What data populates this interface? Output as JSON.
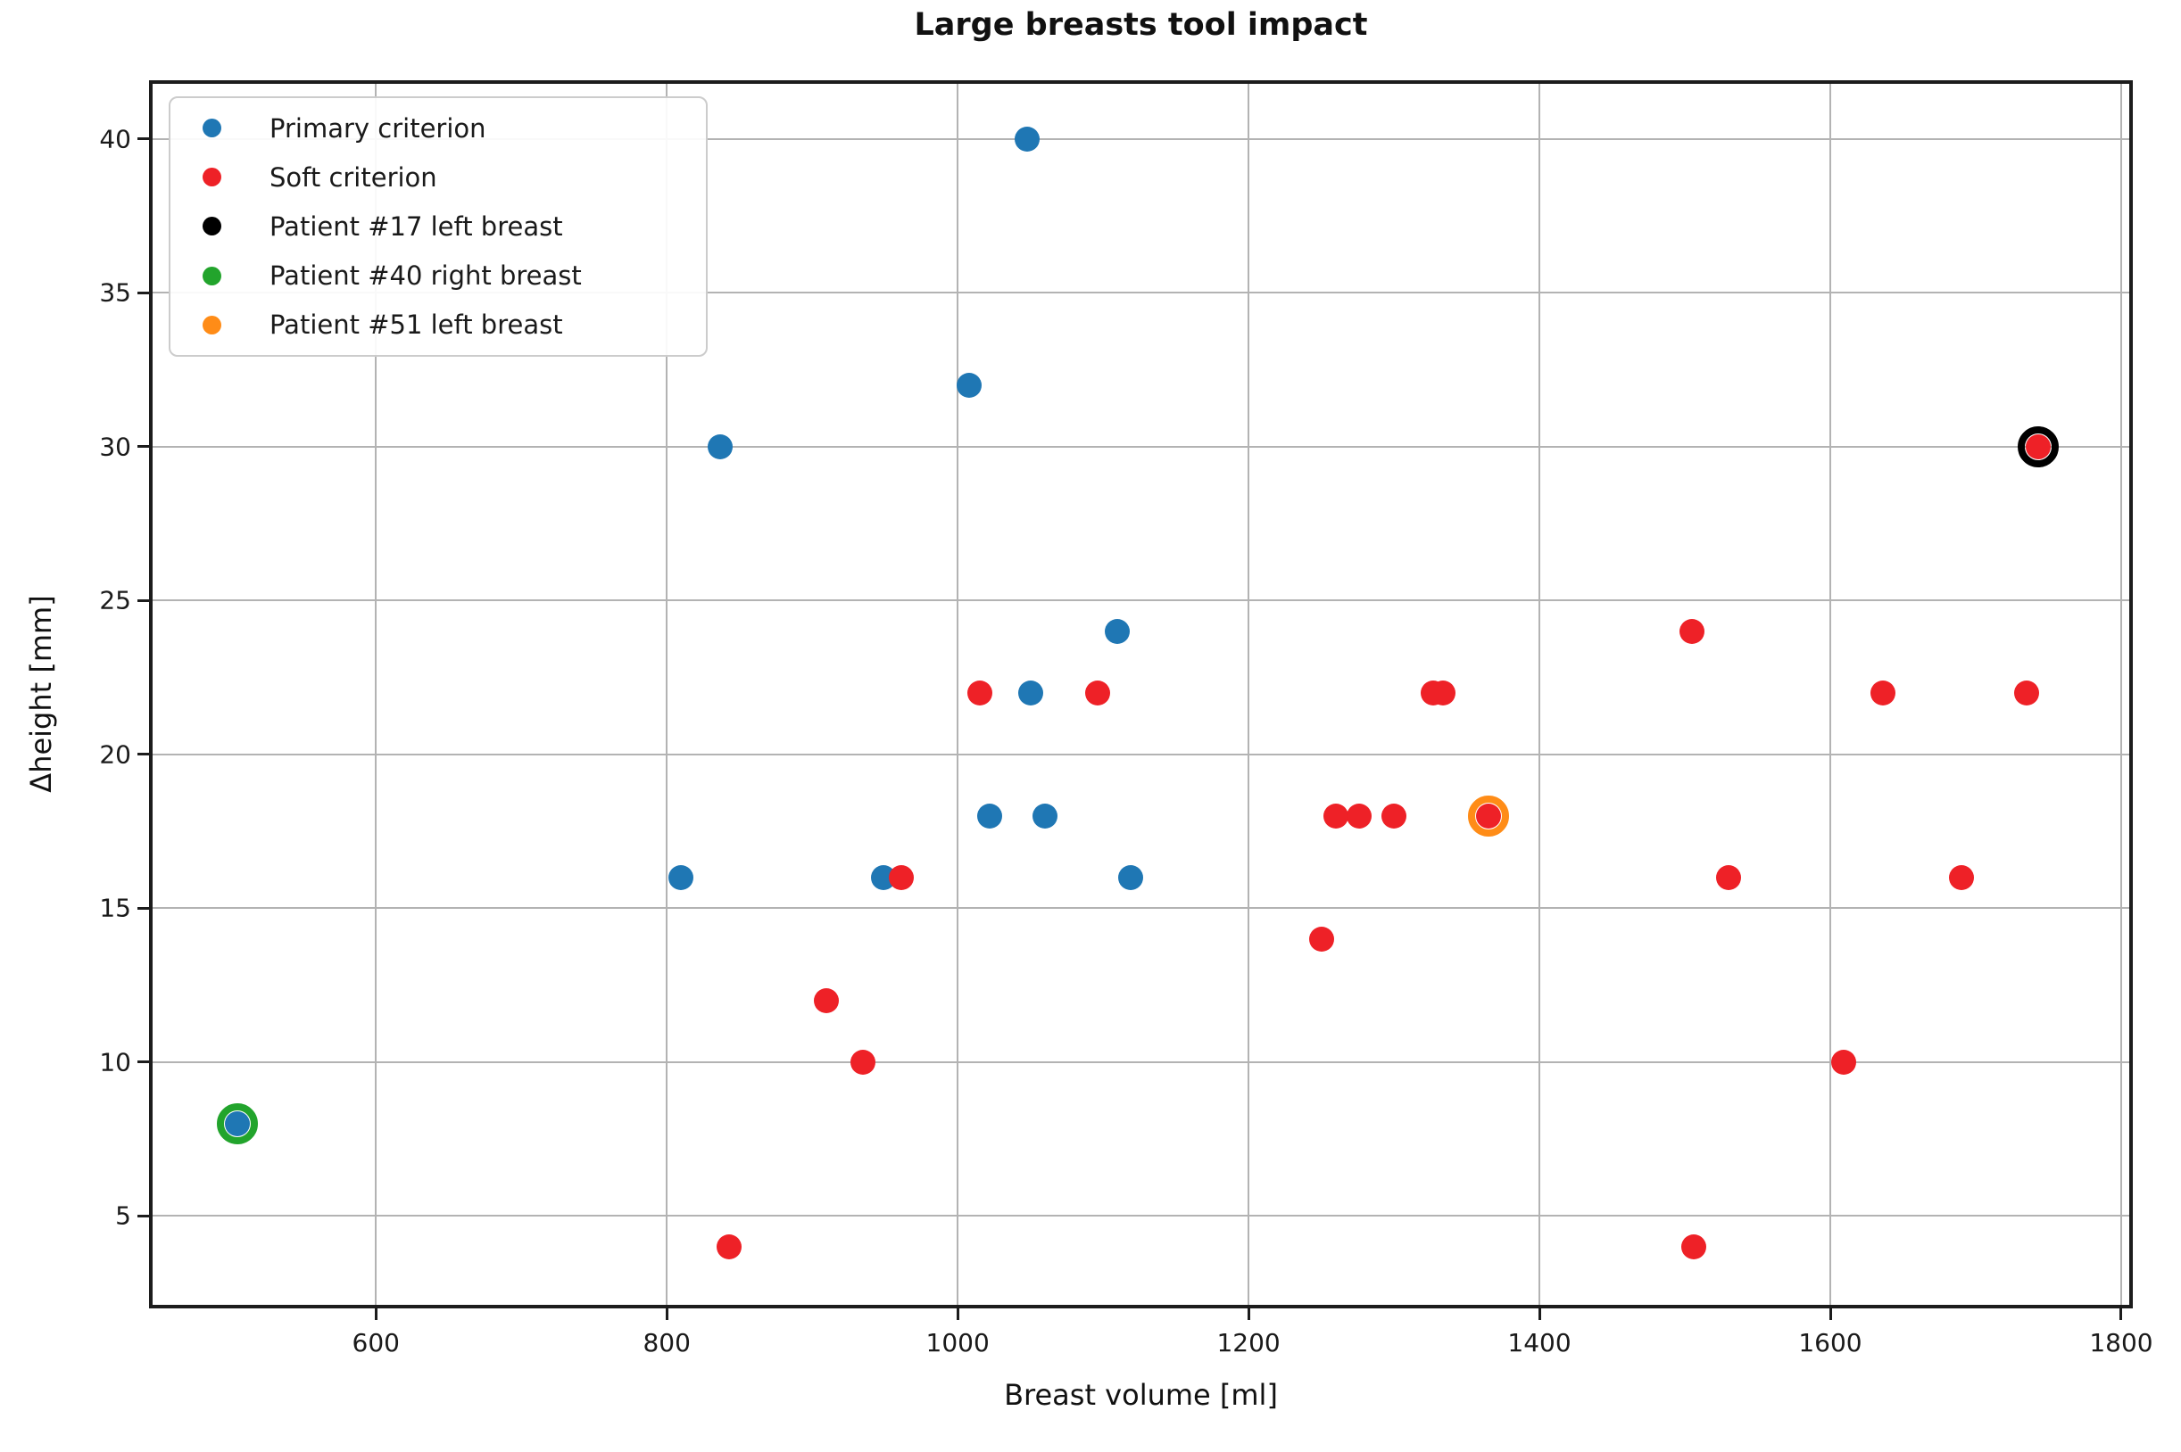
{
  "chart_data": {
    "type": "scatter",
    "title": "Large breasts tool impact",
    "xlabel": "Breast volume [ml]",
    "ylabel": "Δheight [mm]",
    "xlim": [
      444,
      1808
    ],
    "ylim": [
      2.0,
      41.9
    ],
    "xticks": [
      600,
      800,
      1000,
      1200,
      1400,
      1600,
      1800
    ],
    "yticks": [
      5,
      10,
      15,
      20,
      25,
      30,
      35,
      40
    ],
    "grid": true,
    "legend_position": "upper left",
    "series": [
      {
        "name": "Primary criterion",
        "color": "#1f77b4",
        "points": [
          [
            1048,
            40
          ],
          [
            1008,
            32
          ],
          [
            837,
            30
          ],
          [
            1110,
            24
          ],
          [
            1050,
            22
          ],
          [
            1022,
            18
          ],
          [
            1060,
            18
          ],
          [
            1119,
            16
          ],
          [
            949,
            16
          ],
          [
            810,
            16
          ],
          [
            505,
            8
          ]
        ]
      },
      {
        "name": "Soft criterion",
        "color": "#ee2127",
        "points": [
          [
            1015,
            22
          ],
          [
            1096,
            22
          ],
          [
            961,
            16
          ],
          [
            910,
            12
          ],
          [
            935,
            10
          ],
          [
            843,
            4
          ],
          [
            1250,
            14
          ],
          [
            1260,
            18
          ],
          [
            1276,
            18
          ],
          [
            1300,
            18
          ],
          [
            1327,
            22
          ],
          [
            1334,
            22
          ],
          [
            1365,
            18
          ],
          [
            1505,
            24
          ],
          [
            1530,
            16
          ],
          [
            1506,
            4
          ],
          [
            1609,
            10
          ],
          [
            1636,
            22
          ],
          [
            1690,
            16
          ],
          [
            1735,
            22
          ],
          [
            1743,
            30
          ]
        ]
      }
    ],
    "highlights": [
      {
        "name": "Patient #17 left breast",
        "color": "#000000",
        "point": [
          1743,
          30
        ]
      },
      {
        "name": "Patient #40 right breast",
        "color": "#22a42c",
        "point": [
          505,
          8
        ]
      },
      {
        "name": "Patient #51 left breast",
        "color": "#ff8c17",
        "point": [
          1365,
          18
        ]
      }
    ],
    "legend": [
      {
        "label": "Primary criterion",
        "color": "#1f77b4"
      },
      {
        "label": "Soft criterion",
        "color": "#ee2127"
      },
      {
        "label": "Patient #17 left breast",
        "color": "#000000"
      },
      {
        "label": "Patient #40 right breast",
        "color": "#22a42c"
      },
      {
        "label": "Patient #51 left breast",
        "color": "#ff8c17"
      }
    ]
  }
}
